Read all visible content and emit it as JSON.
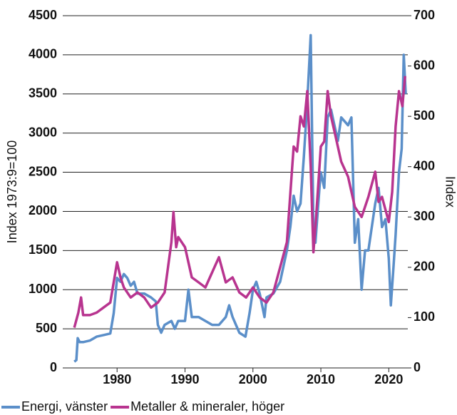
{
  "chart_data": {
    "type": "line",
    "y_label": "Index 1973:9=100",
    "y2_label": "Index",
    "xlim": [
      1972,
      2022.8
    ],
    "xticks": [
      1980,
      1990,
      2000,
      2010,
      2020
    ],
    "ylim": [
      0,
      4500
    ],
    "yticks": [
      0,
      500,
      1000,
      1500,
      2000,
      2500,
      3000,
      3500,
      4000,
      4500
    ],
    "y2lim": [
      0,
      700
    ],
    "y2ticks": [
      0,
      100,
      200,
      300,
      400,
      500,
      600,
      700
    ],
    "grid": true,
    "legend": "bottom",
    "series": [
      {
        "name": "Energi, vänster",
        "color": "#5b8fc9",
        "axis": "y",
        "x": [
          1973.7,
          1974.0,
          1974.2,
          1974.5,
          1975,
          1976,
          1977,
          1978,
          1979,
          1979.5,
          1980,
          1980.5,
          1981,
          1981.5,
          1982,
          1982.5,
          1983,
          1984,
          1985,
          1985.7,
          1986,
          1986.5,
          1987,
          1988,
          1988.5,
          1989,
          1990,
          1990.5,
          1991,
          1992,
          1993,
          1994,
          1995,
          1996,
          1996.5,
          1997,
          1998,
          1998.9,
          1999.5,
          2000,
          2000.5,
          2001,
          2001.7,
          2002,
          2003,
          2004,
          2005,
          2005.5,
          2006,
          2006.5,
          2007,
          2007.5,
          2008,
          2008.5,
          2008.9,
          2009.2,
          2009.8,
          2010,
          2010.5,
          2011,
          2011.5,
          2012,
          2012.5,
          2013,
          2014,
          2014.5,
          2015,
          2015.5,
          2016,
          2016.5,
          2017,
          2018,
          2018.5,
          2019,
          2019.5,
          2020,
          2020.3,
          2020.7,
          2021,
          2021.5,
          2021.9,
          2022.2,
          2022.5
        ],
        "values": [
          80,
          100,
          380,
          330,
          330,
          350,
          400,
          420,
          440,
          700,
          1150,
          1100,
          1200,
          1150,
          1050,
          1100,
          950,
          950,
          900,
          850,
          550,
          450,
          550,
          600,
          500,
          600,
          600,
          1000,
          650,
          650,
          600,
          550,
          550,
          650,
          800,
          650,
          450,
          400,
          700,
          1000,
          1100,
          950,
          650,
          900,
          950,
          1100,
          1500,
          1800,
          2200,
          2000,
          2100,
          2700,
          3400,
          4250,
          1800,
          1600,
          2300,
          2500,
          2300,
          3200,
          3300,
          3100,
          2900,
          3200,
          3100,
          3200,
          1600,
          1900,
          1000,
          1500,
          1500,
          2100,
          2300,
          1800,
          1900,
          1400,
          800,
          1300,
          1700,
          2500,
          2800,
          4000,
          3500
        ]
      },
      {
        "name": "Metaller & mineraler, höger",
        "color": "#b8348f",
        "axis": "y2",
        "x": [
          1973.7,
          1974.3,
          1974.7,
          1975,
          1976,
          1977,
          1978,
          1979,
          1980,
          1980.5,
          1981,
          1982,
          1983,
          1984,
          1985,
          1986,
          1987,
          1988,
          1988.3,
          1988.7,
          1989,
          1990,
          1991,
          1992,
          1993,
          1994,
          1995,
          1996,
          1997,
          1998,
          1999,
          2000,
          2001,
          2002,
          2003,
          2004,
          2005,
          2006,
          2006.5,
          2007,
          2007.5,
          2008,
          2008.5,
          2008.9,
          2009.3,
          2010,
          2010.5,
          2011,
          2011.5,
          2012,
          2013,
          2014,
          2015,
          2016,
          2017,
          2018,
          2018.5,
          2019,
          2020,
          2020.5,
          2021,
          2021.5,
          2022,
          2022.4
        ],
        "values": [
          80,
          110,
          140,
          105,
          105,
          110,
          120,
          130,
          210,
          180,
          160,
          140,
          150,
          140,
          120,
          130,
          150,
          250,
          310,
          240,
          260,
          240,
          180,
          170,
          160,
          190,
          220,
          170,
          180,
          150,
          140,
          160,
          140,
          130,
          150,
          200,
          250,
          440,
          430,
          500,
          480,
          550,
          400,
          230,
          300,
          440,
          450,
          550,
          500,
          470,
          410,
          380,
          320,
          300,
          340,
          390,
          330,
          340,
          290,
          350,
          480,
          550,
          520,
          580
        ]
      }
    ]
  }
}
